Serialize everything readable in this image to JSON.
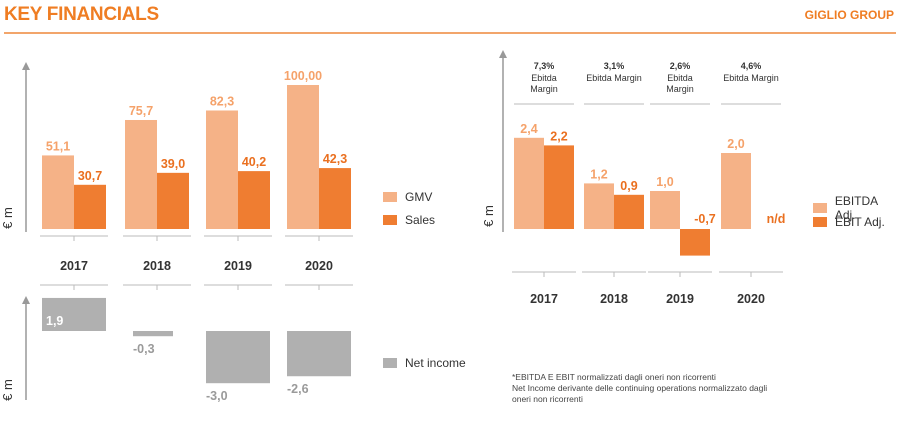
{
  "header": {
    "title": "KEY FINANCIALS",
    "brand": "GIGLIO GROUP"
  },
  "colors": {
    "light": "#f5b287",
    "dark": "#ef7d31",
    "gray": "#b0b0b0"
  },
  "chart_data": [
    {
      "type": "bar",
      "id": "sales",
      "ylabel": "€ m",
      "categories": [
        "2017",
        "2018",
        "2019",
        "2020"
      ],
      "series": [
        {
          "name": "GMV",
          "color": "light",
          "values": [
            51.1,
            75.7,
            82.3,
            100.0
          ],
          "labels": [
            "51,1",
            "75,7",
            "82,3",
            "100,00"
          ]
        },
        {
          "name": "Sales",
          "color": "dark",
          "values": [
            30.7,
            39.0,
            40.2,
            42.3
          ],
          "labels": [
            "30,7",
            "39,0",
            "40,2",
            "42,3"
          ]
        }
      ]
    },
    {
      "type": "bar",
      "id": "netincome",
      "ylabel": "€ m",
      "categories": [
        "2017",
        "2018",
        "2019",
        "2020"
      ],
      "series": [
        {
          "name": "Net income",
          "color": "gray",
          "values": [
            1.9,
            -0.3,
            -3.0,
            -2.6
          ],
          "labels": [
            "1,9",
            "-0,3",
            "-3,0",
            "-2,6"
          ]
        }
      ]
    },
    {
      "type": "bar",
      "id": "ebitda",
      "ylabel": "€ m",
      "categories": [
        "2017",
        "2018",
        "2019",
        "2020"
      ],
      "margins": [
        {
          "pct": "7,3%",
          "lines": [
            "Ebitda",
            "Margin"
          ]
        },
        {
          "pct": "3,1%",
          "lines": [
            "Ebitda Margin"
          ]
        },
        {
          "pct": "2,6%",
          "lines": [
            "Ebitda",
            "Margin"
          ]
        },
        {
          "pct": "4,6%",
          "lines": [
            "Ebitda Margin"
          ]
        }
      ],
      "series": [
        {
          "name": "EBITDA Adj.",
          "color": "light",
          "values": [
            2.4,
            1.2,
            1.0,
            2.0
          ],
          "labels": [
            "2,4",
            "1,2",
            "1,0",
            "2,0"
          ]
        },
        {
          "name": "EBIT Adj.",
          "color": "dark",
          "values": [
            2.2,
            0.9,
            -0.7,
            null
          ],
          "labels": [
            "2,2",
            "0,9",
            "-0,7",
            "n/d"
          ]
        }
      ]
    }
  ],
  "footnote": {
    "lines": [
      "*EBITDA E EBIT normalizzati dagli oneri non ricorrenti",
      "Net Income derivante delle continuing operations normalizzato dagli",
      "oneri non ricorrenti"
    ]
  }
}
